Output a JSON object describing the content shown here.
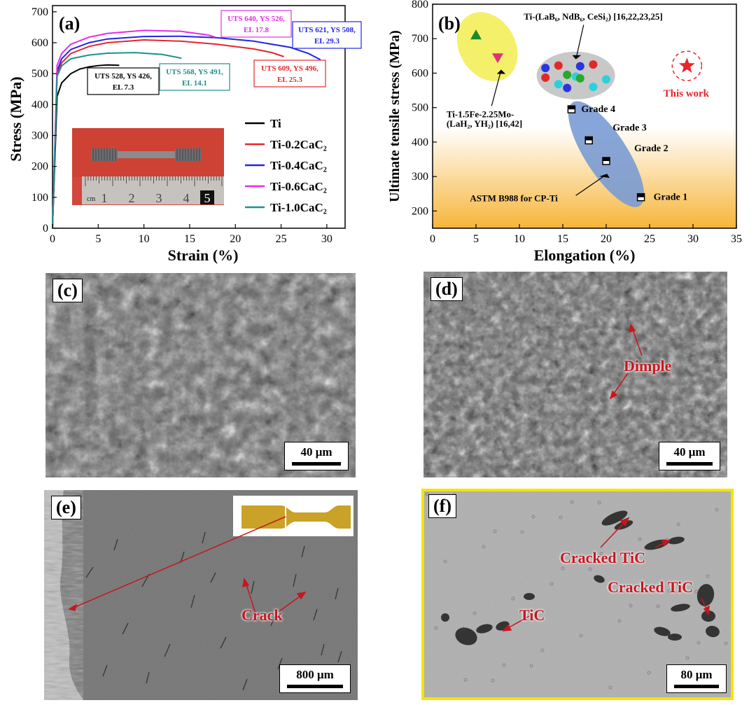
{
  "chart_data": [
    {
      "type": "line",
      "panel": "(a)",
      "xlabel": "Strain (%)",
      "ylabel": "Stress (MPa)",
      "xlim": [
        0,
        32
      ],
      "ylim": [
        0,
        720
      ],
      "xticks": [
        "0",
        "5",
        "10",
        "15",
        "20",
        "25",
        "30"
      ],
      "yticks": [
        "0",
        "100",
        "200",
        "300",
        "400",
        "500",
        "600",
        "700"
      ],
      "grid": false,
      "legend_position": "lower-right",
      "series": [
        {
          "name": "Ti",
          "color": "#000000",
          "x": [
            0,
            0.5,
            1,
            2,
            3,
            4,
            5,
            6,
            7.3
          ],
          "y": [
            0,
            426,
            470,
            500,
            515,
            522,
            526,
            528,
            527
          ],
          "annotation": [
            "UTS 528, YS 426,",
            "EL 7.3"
          ]
        },
        {
          "name": "Ti-0.2CaC₂",
          "color": "#e8252b",
          "x": [
            0,
            0.5,
            1,
            2,
            4,
            6,
            10,
            14,
            18,
            22,
            24,
            25.3
          ],
          "y": [
            0,
            496,
            535,
            565,
            588,
            600,
            609,
            605,
            595,
            580,
            568,
            555
          ],
          "annotation": [
            "UTS 609, YS 496,",
            "EL 25.3"
          ]
        },
        {
          "name": "Ti-0.4CaC₂",
          "color": "#2424e6",
          "x": [
            0,
            0.5,
            1,
            2,
            4,
            6,
            10,
            14,
            18,
            22,
            26,
            28,
            29.3
          ],
          "y": [
            0,
            508,
            548,
            578,
            600,
            612,
            620,
            621,
            616,
            605,
            585,
            565,
            545
          ],
          "annotation": [
            "UTS 621, YS 508,",
            "EL 29.3"
          ]
        },
        {
          "name": "Ti-0.6CaC₂",
          "color": "#e62ce6",
          "x": [
            0,
            0.5,
            1,
            2,
            4,
            6,
            10,
            14,
            17,
            17.8
          ],
          "y": [
            0,
            526,
            565,
            595,
            618,
            630,
            640,
            637,
            625,
            618
          ],
          "annotation": [
            "UTS 640, YS 526,",
            "EL 17.8"
          ]
        },
        {
          "name": "Ti-1.0CaC₂",
          "color": "#1e9090",
          "x": [
            0,
            0.5,
            1,
            2,
            4,
            6,
            9,
            12,
            14.1
          ],
          "y": [
            0,
            491,
            525,
            548,
            560,
            566,
            568,
            562,
            550
          ],
          "annotation": [
            "UTS 568, YS 491,",
            "EL 14.1"
          ]
        }
      ],
      "inset_ruler": [
        "cm",
        "1",
        "2",
        "3",
        "4",
        "5"
      ]
    },
    {
      "type": "scatter",
      "panel": "(b)",
      "xlabel": "Elongation (%)",
      "ylabel": "Ultimate tensile stress (MPa)",
      "xlim": [
        0,
        35
      ],
      "ylim": [
        150,
        800
      ],
      "xticks": [
        "0",
        "5",
        "10",
        "15",
        "20",
        "25",
        "30",
        "35"
      ],
      "yticks": [
        "200",
        "300",
        "400",
        "500",
        "600",
        "700",
        "800"
      ],
      "grades": [
        {
          "label": "Grade 1",
          "x": 24,
          "y": 240
        },
        {
          "label": "Grade 2",
          "x": 20,
          "y": 345
        },
        {
          "label": "Grade 3",
          "x": 18,
          "y": 405
        },
        {
          "label": "Grade 4",
          "x": 16,
          "y": 495
        }
      ],
      "grade_region_label": "ASTM B988 for CP-Ti",
      "group1_label": [
        "Ti-1.5Fe-2.25Mo-",
        "(LaH₂, YH₂) [16,42]"
      ],
      "group1_points": [
        {
          "marker": "triangle-up",
          "color": "#1a8a2a",
          "x": 5,
          "y": 710
        },
        {
          "marker": "triangle-down",
          "color": "#e0307a",
          "x": 7.5,
          "y": 645
        }
      ],
      "group2_label": "Ti-(LaB₆, NdB₆, CeSi₂) [16,22,23,25]",
      "group2_points": [
        {
          "color": "#2a35e0",
          "x": 13,
          "y": 615
        },
        {
          "color": "#e02a2a",
          "x": 14.5,
          "y": 622
        },
        {
          "color": "#2a35e0",
          "x": 17,
          "y": 620
        },
        {
          "color": "#e02a2a",
          "x": 18.5,
          "y": 625
        },
        {
          "color": "#e02a2a",
          "x": 13,
          "y": 587
        },
        {
          "color": "#2aa82a",
          "x": 15.5,
          "y": 595
        },
        {
          "color": "#2ad0e0",
          "x": 16.5,
          "y": 590
        },
        {
          "color": "#2ad0e0",
          "x": 20,
          "y": 582
        },
        {
          "color": "#2ad0e0",
          "x": 14.5,
          "y": 568
        },
        {
          "color": "#2a35e0",
          "x": 15.5,
          "y": 557
        },
        {
          "color": "#2aa82a",
          "x": 17,
          "y": 585
        },
        {
          "color": "#2ad0e0",
          "x": 18.5,
          "y": 560
        }
      ],
      "this_work": {
        "label": "This work",
        "x": 29.3,
        "y": 621,
        "color": "#e8252b"
      }
    }
  ],
  "micrographs": {
    "c": {
      "label": "(c)",
      "scale": "40 μm"
    },
    "d": {
      "label": "(d)",
      "scale": "40 μm",
      "annotation": "Dimple"
    },
    "e": {
      "label": "(e)",
      "scale": "800 μm",
      "annotation": "Crack"
    },
    "f": {
      "label": "(f)",
      "scale": "80 μm",
      "annotations": [
        "Cracked TiC",
        "Cracked TiC",
        "TiC"
      ]
    }
  },
  "colors": {
    "grade_ellipse": "#7a9bd4",
    "group1_ellipse": "#f4f06a",
    "group2_ellipse": "#c8c8c8",
    "arrow_red": "#c8161e",
    "frame_yellow": "#f2e600"
  }
}
